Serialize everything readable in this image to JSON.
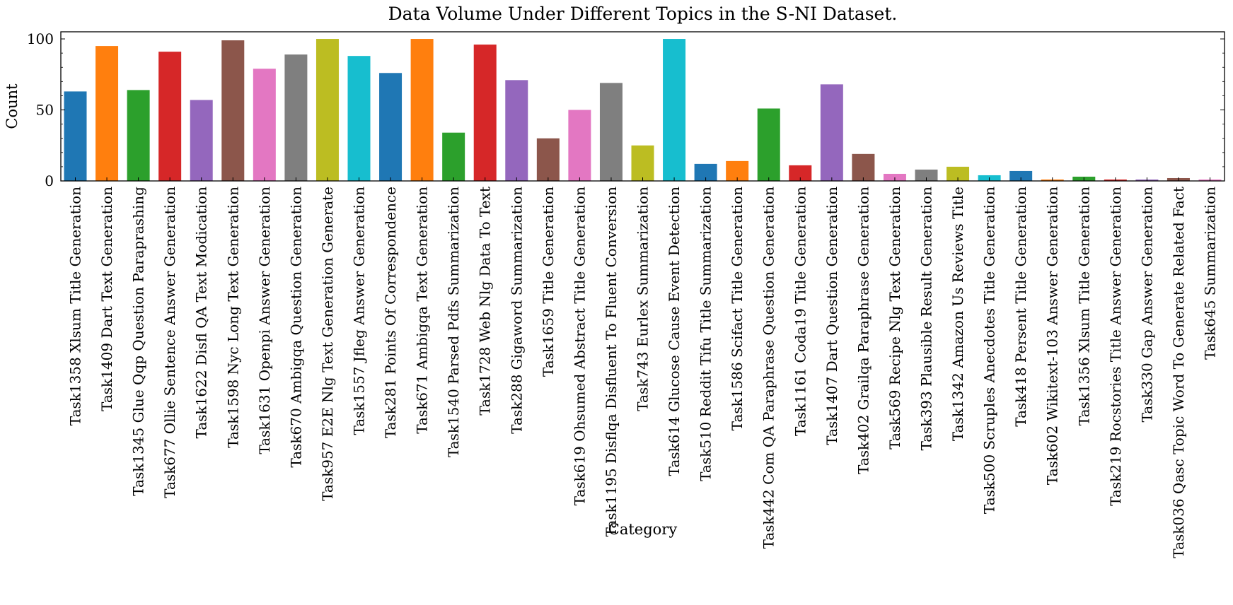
{
  "chart_data": {
    "type": "bar",
    "title": "Data Volume Under Different Topics in the S-NI Dataset.",
    "xlabel": "Category",
    "ylabel": "Count",
    "ylim": [
      0,
      105
    ],
    "yticks": [
      0,
      50,
      100
    ],
    "grid": false,
    "colors": [
      "#1f77b4",
      "#ff7f0e",
      "#2ca02c",
      "#d62728",
      "#9467bd",
      "#8c564b",
      "#e377c2",
      "#7f7f7f",
      "#bcbd22",
      "#17becf"
    ],
    "categories": [
      "Task1358 Xlsum Title Generation",
      "Task1409 Dart Text Generation",
      "Task1345 Glue Qqp Question Paraprashing",
      "Task677 Ollie Sentence Answer Generation",
      "Task1622 Disfl QA Text Modication",
      "Task1598 Nyc Long Text Generation",
      "Task1631 Openpi Answer Generation",
      "Task670 Ambigqa Question Generation",
      "Task957 E2E Nlg Text Generation Generate",
      "Task1557 Jfleg Answer Generation",
      "Task281 Points Of Correspondence",
      "Task671 Ambigqa Text Generation",
      "Task1540 Parsed Pdfs Summarization",
      "Task1728 Web Nlg Data To Text",
      "Task288 Gigaword Summarization",
      "Task1659 Title Generation",
      "Task619 Ohsumed Abstract Title Generation",
      "Task1195 Disflqa Disfluent To Fluent Conversion",
      "Task743 Eurlex Summarization",
      "Task614 Glucose Cause Event Detection",
      "Task510 Reddit Tifu Title Summarization",
      "Task1586 Scifact Title Generation",
      "Task442 Com QA Paraphrase Question Generation",
      "Task1161 Coda19 Title Generation",
      "Task1407 Dart Question Generation",
      "Task402 Grailqa Paraphrase Generation",
      "Task569 Recipe Nlg Text Generation",
      "Task393 Plausible Result Generation",
      "Task1342 Amazon Us Reviews Title",
      "Task500 Scruples Anecdotes Title Generation",
      "Task418 Persent Title Generation",
      "Task602 Wikitext-103 Answer Generation",
      "Task1356 Xlsum Title Generation",
      "Task219 Rocstories Title Answer Generation",
      "Task330 Gap Answer Generation",
      "Task036 Qasc Topic Word To Generate Related Fact",
      "Task645 Summarization"
    ],
    "values": [
      63,
      95,
      64,
      91,
      57,
      99,
      79,
      89,
      100,
      88,
      76,
      100,
      34,
      96,
      71,
      30,
      50,
      69,
      25,
      100,
      12,
      14,
      51,
      11,
      68,
      19,
      5,
      8,
      10,
      4,
      7,
      1,
      3,
      1,
      1,
      2,
      1
    ]
  }
}
